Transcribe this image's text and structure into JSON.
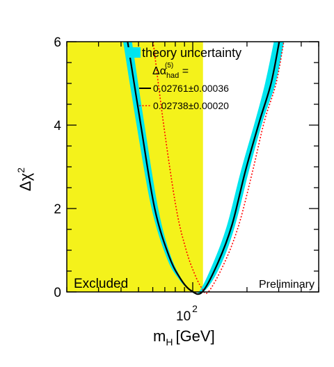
{
  "chart_data": {
    "type": "line",
    "x_scale": "log",
    "xlim": [
      20,
      500
    ],
    "ylim": [
      0,
      6
    ],
    "grid": false,
    "xlabel": {
      "main": "m",
      "sub": "H",
      "unit": "[GeV]"
    },
    "ylabel": {
      "main": "Δχ",
      "sup": "2"
    },
    "x_ticks": [
      {
        "base": "10",
        "exp": "2",
        "value": 100
      }
    ],
    "y_ticks": [
      0,
      2,
      4,
      6
    ],
    "excluded_region": {
      "x": [
        20,
        114
      ],
      "label": "Excluded",
      "color": "#f4f21b"
    },
    "corner_label": "Preliminary",
    "legend": {
      "position": "top-right",
      "band_label": "theory uncertainty",
      "alpha_label": {
        "main": "Δα",
        "sub": "had",
        "sup": "(5)",
        "suffix": " ="
      },
      "entries": [
        {
          "label": "0.02761±0.00036",
          "color": "#000000",
          "style": "solid"
        },
        {
          "label": "0.02738±0.00020",
          "color": "#ff0000",
          "style": "dotted"
        }
      ]
    },
    "band": {
      "name": "theory uncertainty",
      "color": "#00e5ee",
      "upper_edge": {
        "x": [
          41.1,
          48.8,
          59.1,
          72,
          84,
          96,
          108,
          130,
          155,
          185,
          222,
          252,
          282
        ],
        "y": [
          6.0,
          4.0,
          2.0,
          0.8,
          0.3,
          0.05,
          0.0,
          0.7,
          1.6,
          2.9,
          4.1,
          5.0,
          6.0
        ]
      },
      "lower_edge": {
        "x": [
          46,
          54,
          64.3,
          75,
          87,
          99,
          118,
          145,
          172,
          205,
          245,
          288,
          321
        ],
        "y": [
          6.0,
          4.0,
          2.0,
          0.9,
          0.3,
          0.0,
          0.05,
          0.7,
          1.6,
          2.9,
          4.1,
          5.0,
          6.0
        ]
      }
    },
    "series": [
      {
        "name": "0.02761±0.00036",
        "color": "#000000",
        "style": "solid",
        "x": [
          43.5,
          51.5,
          61.5,
          74,
          86,
          98,
          113,
          138,
          165,
          196,
          235,
          272,
          302
        ],
        "y": [
          6.0,
          4.0,
          2.0,
          0.85,
          0.3,
          0.03,
          0.0,
          0.7,
          1.6,
          2.9,
          4.1,
          5.0,
          6.0
        ]
      },
      {
        "name": "0.02738±0.00020",
        "color": "#ff0000",
        "style": "dotted",
        "x": [
          60.3,
          69,
          81,
          92,
          102,
          112,
          122,
          150,
          180,
          215,
          250,
          290,
          320
        ],
        "y": [
          6.0,
          4.0,
          2.0,
          1.0,
          0.45,
          0.1,
          0.0,
          0.7,
          1.6,
          2.9,
          4.1,
          5.0,
          6.0
        ]
      }
    ]
  }
}
